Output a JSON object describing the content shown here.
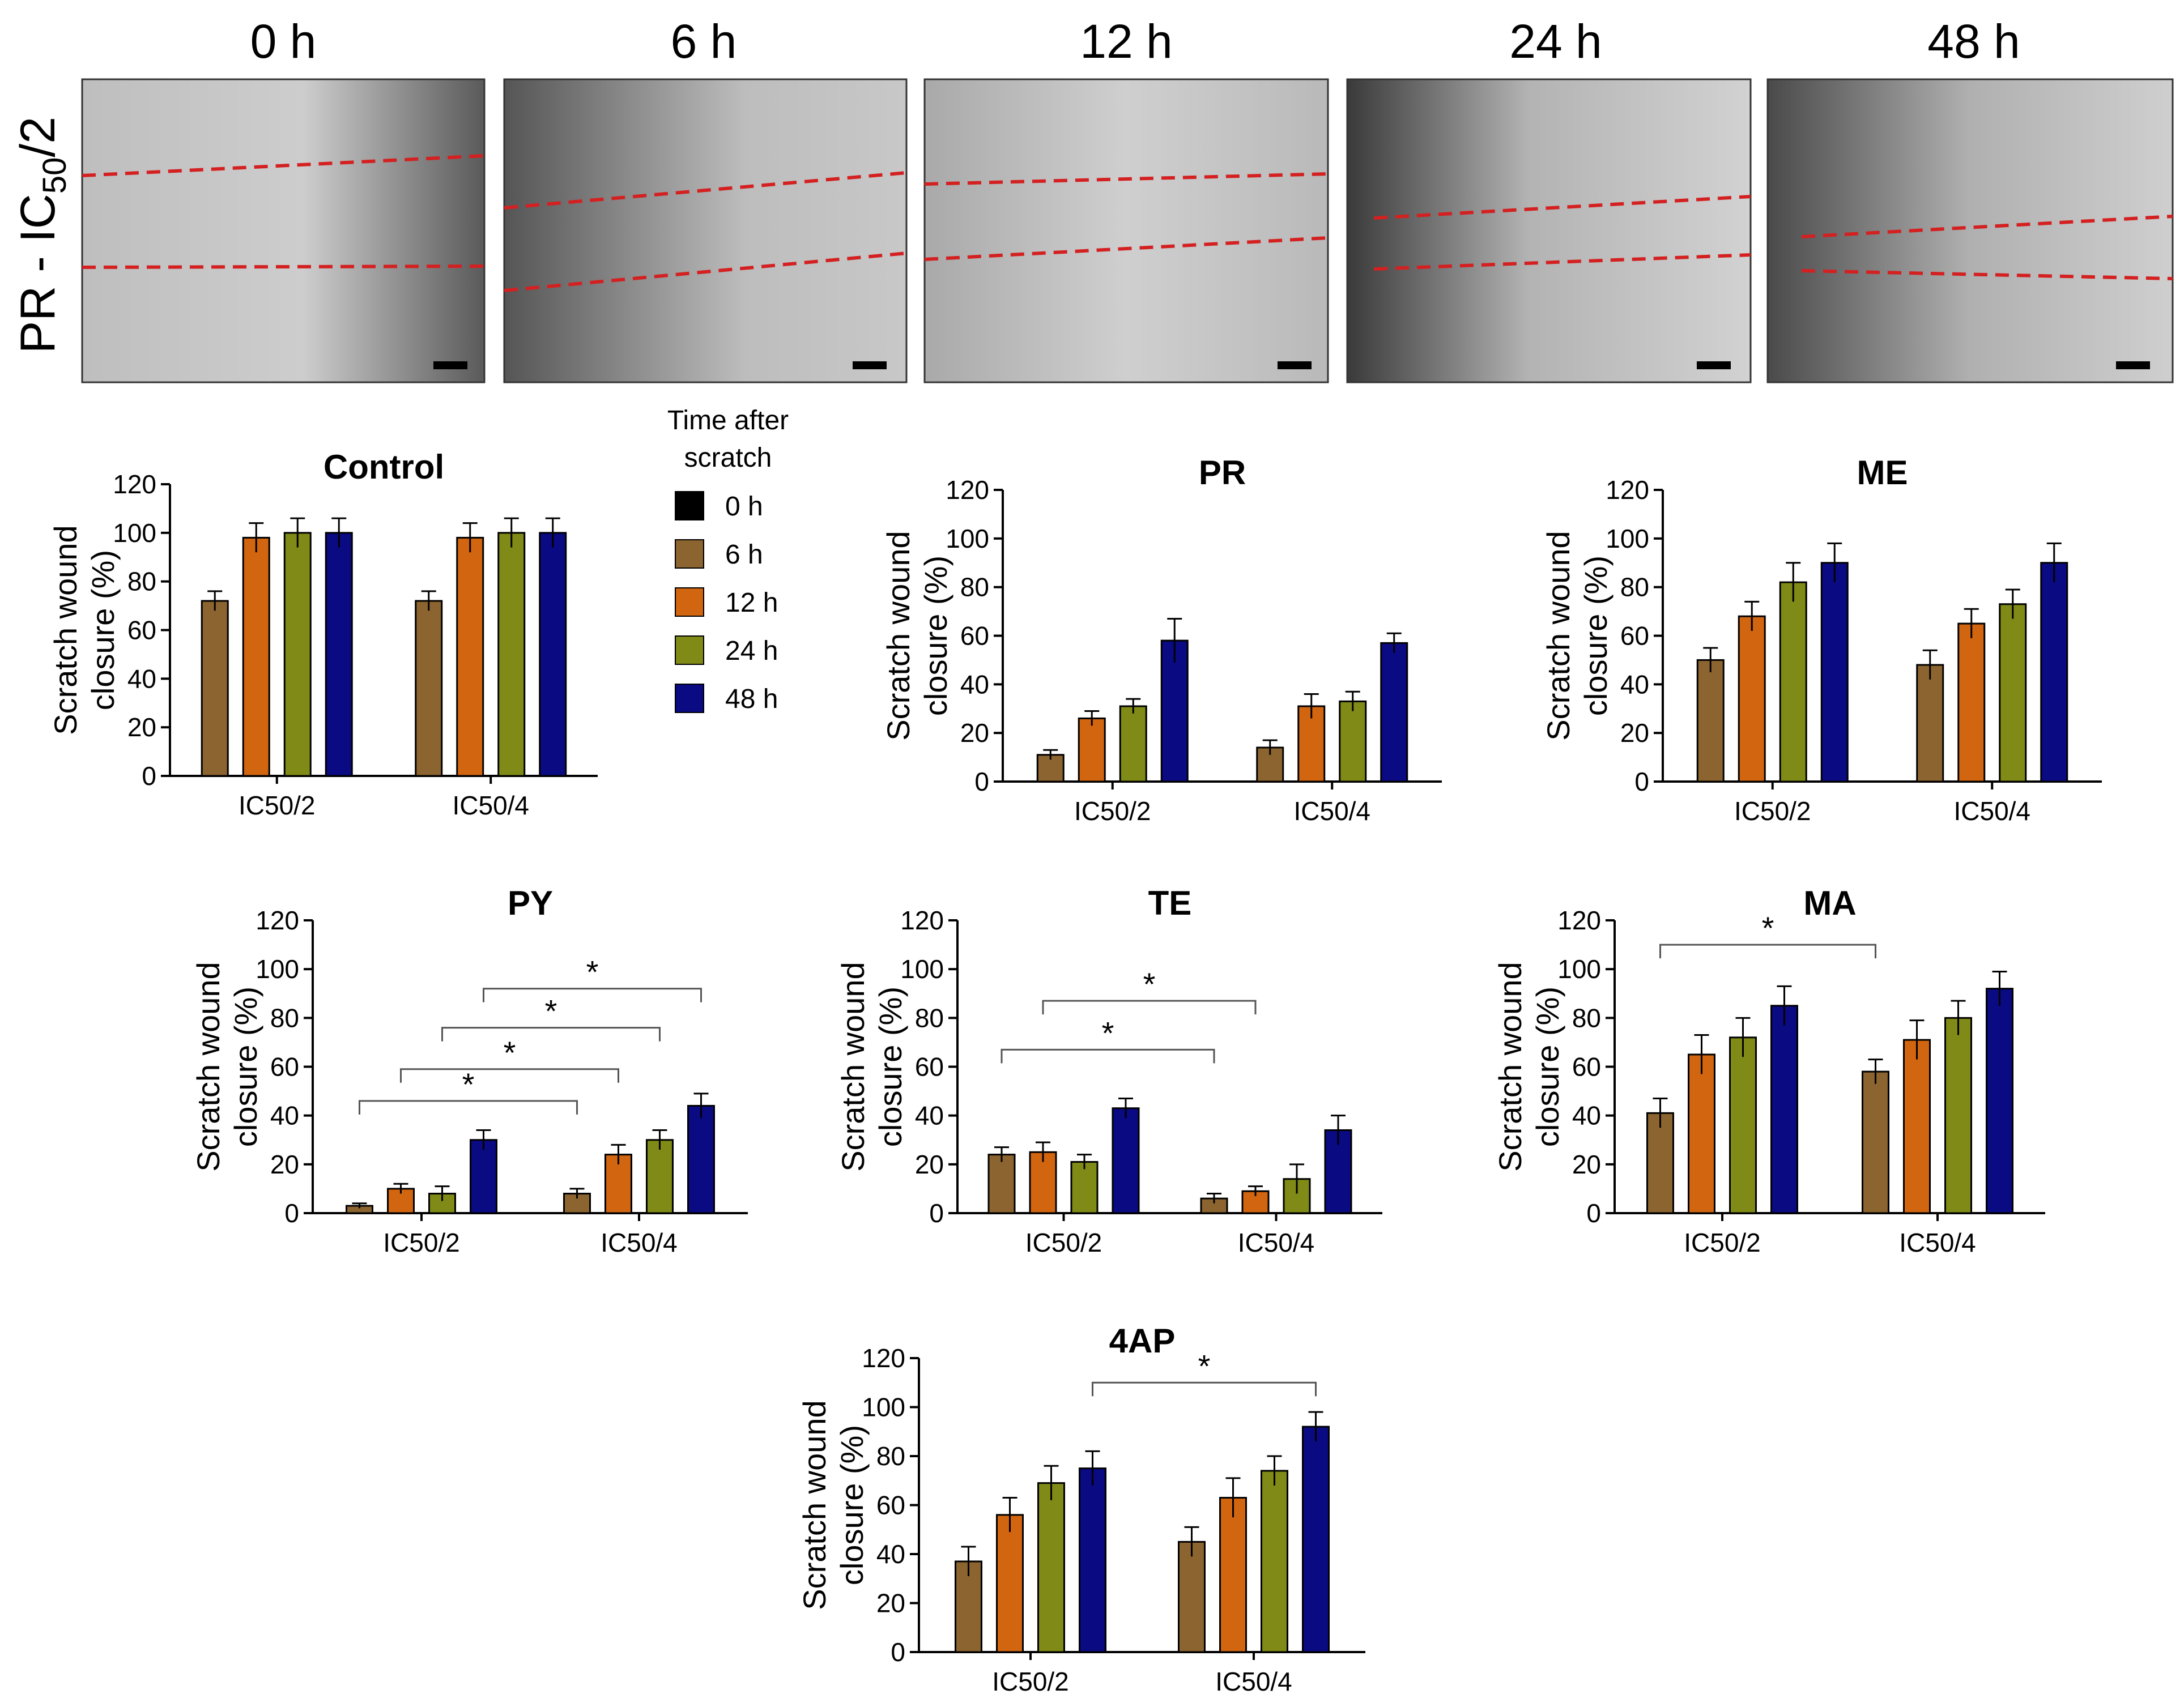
{
  "timepoints": [
    "0 h",
    "6 h",
    "12 h",
    "24 h",
    "48 h"
  ],
  "row_label": {
    "main": "PR - IC",
    "sub": "50",
    "tail": "/2"
  },
  "legend": {
    "title_lines": [
      "Time after",
      "scratch"
    ],
    "entries": [
      {
        "label": "0 h",
        "color": "#000000"
      },
      {
        "label": "6 h",
        "color": "#8c6430"
      },
      {
        "label": "12 h",
        "color": "#d2650f"
      },
      {
        "label": "24 h",
        "color": "#808a16"
      },
      {
        "label": "48 h",
        "color": "#0a0a82"
      }
    ]
  },
  "colors": {
    "series_6h": "#8c6430",
    "series_12h": "#d2650f",
    "series_24h": "#808a16",
    "series_48h": "#0a0a82",
    "scratch_line": "#d42020",
    "error_bar": "#000000"
  },
  "chart_data": [
    {
      "id": "control",
      "type": "bar",
      "title": "Control",
      "ylabel_lines": [
        "Scratch wound",
        "closure (%)"
      ],
      "yticks": [
        0,
        20,
        40,
        60,
        80,
        100,
        120
      ],
      "ylim": [
        0,
        120
      ],
      "categories": [
        "IC50/2",
        "IC50/4"
      ],
      "series": [
        {
          "name": "6 h",
          "values": [
            72,
            72
          ],
          "errors": [
            4,
            4
          ]
        },
        {
          "name": "12 h",
          "values": [
            98,
            98
          ],
          "errors": [
            6,
            6
          ]
        },
        {
          "name": "24 h",
          "values": [
            100,
            100
          ],
          "errors": [
            6,
            6
          ]
        },
        {
          "name": "48 h",
          "values": [
            100,
            100
          ],
          "errors": [
            6,
            6
          ]
        }
      ],
      "significance": []
    },
    {
      "id": "pr",
      "type": "bar",
      "title": "PR",
      "ylabel_lines": [
        "Scratch wound",
        "closure (%)"
      ],
      "yticks": [
        0,
        20,
        40,
        60,
        80,
        100,
        120
      ],
      "ylim": [
        0,
        120
      ],
      "categories": [
        "IC50/2",
        "IC50/4"
      ],
      "series": [
        {
          "name": "6 h",
          "values": [
            11,
            14
          ],
          "errors": [
            2,
            3
          ]
        },
        {
          "name": "12 h",
          "values": [
            26,
            31
          ],
          "errors": [
            3,
            5
          ]
        },
        {
          "name": "24 h",
          "values": [
            31,
            33
          ],
          "errors": [
            3,
            4
          ]
        },
        {
          "name": "48 h",
          "values": [
            58,
            57
          ],
          "errors": [
            9,
            4
          ]
        }
      ],
      "significance": []
    },
    {
      "id": "me",
      "type": "bar",
      "title": "ME",
      "ylabel_lines": [
        "Scratch wound",
        "closure (%)"
      ],
      "yticks": [
        0,
        20,
        40,
        60,
        80,
        100,
        120
      ],
      "ylim": [
        0,
        120
      ],
      "categories": [
        "IC50/2",
        "IC50/4"
      ],
      "series": [
        {
          "name": "6 h",
          "values": [
            50,
            48
          ],
          "errors": [
            5,
            6
          ]
        },
        {
          "name": "12 h",
          "values": [
            68,
            65
          ],
          "errors": [
            6,
            6
          ]
        },
        {
          "name": "24 h",
          "values": [
            82,
            73
          ],
          "errors": [
            8,
            6
          ]
        },
        {
          "name": "48 h",
          "values": [
            90,
            90
          ],
          "errors": [
            8,
            8
          ]
        }
      ],
      "significance": []
    },
    {
      "id": "py",
      "type": "bar",
      "title": "PY",
      "ylabel_lines": [
        "Scratch wound",
        "closure (%)"
      ],
      "yticks": [
        0,
        20,
        40,
        60,
        80,
        100,
        120
      ],
      "ylim": [
        0,
        120
      ],
      "categories": [
        "IC50/2",
        "IC50/4"
      ],
      "series": [
        {
          "name": "6 h",
          "values": [
            3,
            8
          ],
          "errors": [
            1,
            2
          ]
        },
        {
          "name": "12 h",
          "values": [
            10,
            24
          ],
          "errors": [
            2,
            4
          ]
        },
        {
          "name": "24 h",
          "values": [
            8,
            30
          ],
          "errors": [
            3,
            4
          ]
        },
        {
          "name": "48 h",
          "values": [
            30,
            44
          ],
          "errors": [
            4,
            5
          ]
        }
      ],
      "significance": [
        {
          "from": [
            0,
            0
          ],
          "to": [
            1,
            0
          ],
          "level": 46,
          "label": "*"
        },
        {
          "from": [
            0,
            1
          ],
          "to": [
            1,
            1
          ],
          "level": 59,
          "label": "*"
        },
        {
          "from": [
            0,
            2
          ],
          "to": [
            1,
            2
          ],
          "level": 76,
          "label": "*"
        },
        {
          "from": [
            0,
            3
          ],
          "to": [
            1,
            3
          ],
          "level": 92,
          "label": "*"
        }
      ]
    },
    {
      "id": "te",
      "type": "bar",
      "title": "TE",
      "ylabel_lines": [
        "Scratch wound",
        "closure (%)"
      ],
      "yticks": [
        0,
        20,
        40,
        60,
        80,
        100,
        120
      ],
      "ylim": [
        0,
        120
      ],
      "categories": [
        "IC50/2",
        "IC50/4"
      ],
      "series": [
        {
          "name": "6 h",
          "values": [
            24,
            6
          ],
          "errors": [
            3,
            2
          ]
        },
        {
          "name": "12 h",
          "values": [
            25,
            9
          ],
          "errors": [
            4,
            2
          ]
        },
        {
          "name": "24 h",
          "values": [
            21,
            14
          ],
          "errors": [
            3,
            6
          ]
        },
        {
          "name": "48 h",
          "values": [
            43,
            34
          ],
          "errors": [
            4,
            6
          ]
        }
      ],
      "significance": [
        {
          "from": [
            0,
            0
          ],
          "to": [
            1,
            0
          ],
          "level": 67,
          "label": "*"
        },
        {
          "from": [
            0,
            1
          ],
          "to": [
            1,
            1
          ],
          "level": 87,
          "label": "*"
        }
      ]
    },
    {
      "id": "ma",
      "type": "bar",
      "title": "MA",
      "ylabel_lines": [
        "Scratch wound",
        "closure (%)"
      ],
      "yticks": [
        0,
        20,
        40,
        60,
        80,
        100,
        120
      ],
      "ylim": [
        0,
        120
      ],
      "categories": [
        "IC50/2",
        "IC50/4"
      ],
      "series": [
        {
          "name": "6 h",
          "values": [
            41,
            58
          ],
          "errors": [
            6,
            5
          ]
        },
        {
          "name": "12 h",
          "values": [
            65,
            71
          ],
          "errors": [
            8,
            8
          ]
        },
        {
          "name": "24 h",
          "values": [
            72,
            80
          ],
          "errors": [
            8,
            7
          ]
        },
        {
          "name": "48 h",
          "values": [
            85,
            92
          ],
          "errors": [
            8,
            7
          ]
        }
      ],
      "significance": [
        {
          "from": [
            0,
            0
          ],
          "to": [
            1,
            0
          ],
          "level": 110,
          "label": "*"
        }
      ]
    },
    {
      "id": "4ap",
      "type": "bar",
      "title": "4AP",
      "ylabel_lines": [
        "Scratch wound",
        "closure (%)"
      ],
      "yticks": [
        0,
        20,
        40,
        60,
        80,
        100,
        120
      ],
      "ylim": [
        0,
        120
      ],
      "categories": [
        "IC50/2",
        "IC50/4"
      ],
      "series": [
        {
          "name": "6 h",
          "values": [
            37,
            45
          ],
          "errors": [
            6,
            6
          ]
        },
        {
          "name": "12 h",
          "values": [
            56,
            63
          ],
          "errors": [
            7,
            8
          ]
        },
        {
          "name": "24 h",
          "values": [
            69,
            74
          ],
          "errors": [
            7,
            6
          ]
        },
        {
          "name": "48 h",
          "values": [
            75,
            92
          ],
          "errors": [
            7,
            6
          ]
        }
      ],
      "significance": [
        {
          "from": [
            0,
            3
          ],
          "to": [
            1,
            3
          ],
          "level": 110,
          "label": "*"
        }
      ]
    }
  ]
}
